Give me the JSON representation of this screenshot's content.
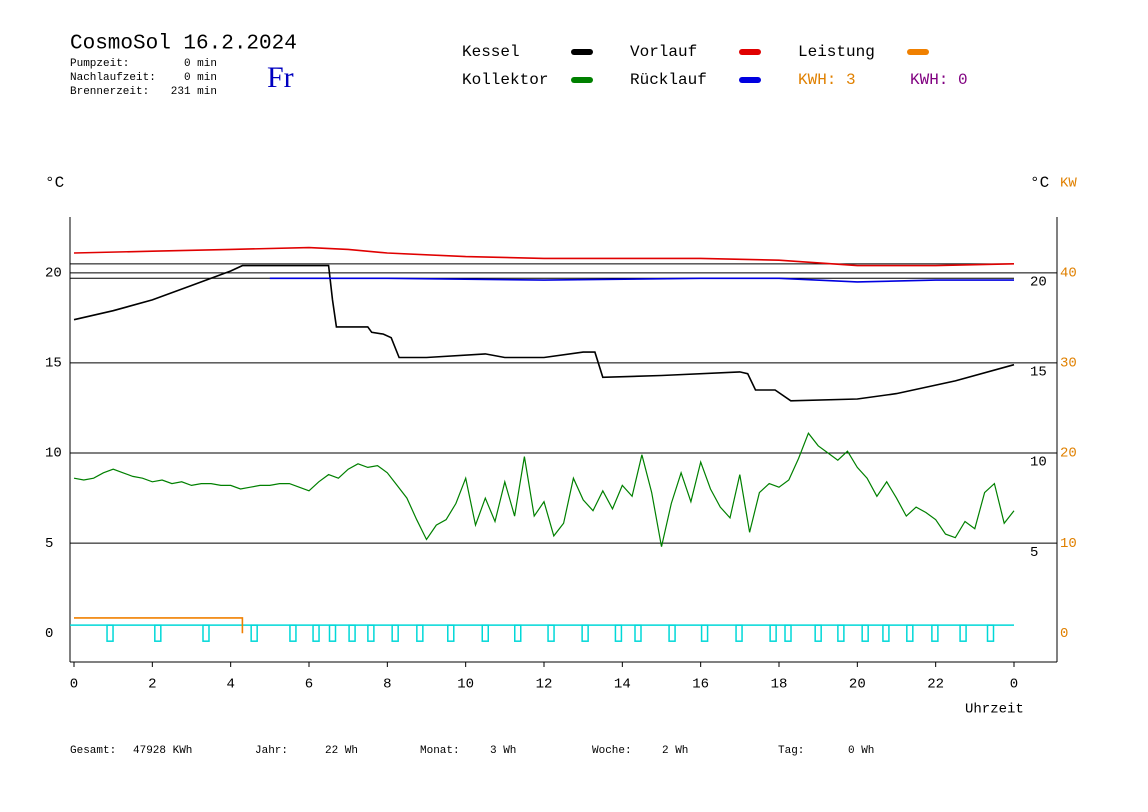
{
  "chart_data": {
    "type": "line",
    "title": "CosmoSol 16.2.2024",
    "info": [
      {
        "label": "Pumpzeit:",
        "value": "0 min"
      },
      {
        "label": "Nachlaufzeit:",
        "value": "0 min"
      },
      {
        "label": "Brennerzeit:",
        "value": "231 min"
      }
    ],
    "weekday": "Fr",
    "ylabel": "°C",
    "y2label": [
      "°C",
      "KW"
    ],
    "xlabel": "Uhrzeit",
    "xlim": [
      0,
      24
    ],
    "xticks": [
      0,
      2,
      4,
      6,
      8,
      10,
      12,
      14,
      16,
      18,
      20,
      22,
      {
        "value": 24,
        "label": "0"
      }
    ],
    "ylim": [
      -1.6,
      23.1
    ],
    "yticks": [
      0,
      5,
      10,
      15,
      20
    ],
    "y2lim": [
      -3.2,
      46.2
    ],
    "y2ticks": [
      0,
      10,
      20,
      30,
      40
    ],
    "grid": true,
    "hlines": [
      20.5,
      19.7
    ],
    "series": [
      {
        "name": "Kessel",
        "color": "#000000",
        "x": [
          0,
          1,
          2,
          3,
          4,
          4.3,
          6.5,
          6.6,
          6.7,
          7.5,
          7.6,
          7.9,
          8.1,
          8.3,
          9,
          10.5,
          11,
          12,
          13,
          13.3,
          13.5,
          15,
          17,
          17.2,
          17.4,
          17.9,
          18.3,
          20,
          21,
          22.5,
          24
        ],
        "values": [
          17.4,
          17.9,
          18.5,
          19.3,
          20.1,
          20.4,
          20.4,
          18.5,
          17.0,
          17.0,
          16.7,
          16.6,
          16.4,
          15.3,
          15.3,
          15.5,
          15.3,
          15.3,
          15.6,
          15.6,
          14.2,
          14.3,
          14.5,
          14.4,
          13.5,
          13.5,
          12.9,
          13.0,
          13.3,
          14.0,
          14.9
        ]
      },
      {
        "name": "Kollektor",
        "color": "#008000",
        "x": [
          0,
          0.25,
          0.5,
          0.75,
          1,
          1.25,
          1.5,
          1.75,
          2,
          2.25,
          2.5,
          2.75,
          3,
          3.25,
          3.5,
          3.75,
          4,
          4.25,
          4.5,
          4.75,
          5,
          5.25,
          5.5,
          5.75,
          6,
          6.25,
          6.5,
          6.75,
          7,
          7.25,
          7.5,
          7.75,
          8,
          8.25,
          8.5,
          8.75,
          9,
          9.25,
          9.5,
          9.75,
          10,
          10.25,
          10.5,
          10.75,
          11,
          11.25,
          11.5,
          11.75,
          12,
          12.25,
          12.5,
          12.75,
          13,
          13.25,
          13.5,
          13.75,
          14,
          14.25,
          14.5,
          14.75,
          15,
          15.25,
          15.5,
          15.75,
          16,
          16.25,
          16.5,
          16.75,
          17,
          17.25,
          17.5,
          17.75,
          18,
          18.25,
          18.5,
          18.75,
          19,
          19.25,
          19.5,
          19.75,
          20,
          20.25,
          20.5,
          20.75,
          21,
          21.25,
          21.5,
          21.75,
          22,
          22.25,
          22.5,
          22.75,
          23,
          23.25,
          23.5,
          23.75,
          24
        ],
        "values": [
          8.6,
          8.5,
          8.6,
          8.9,
          9.1,
          8.9,
          8.7,
          8.6,
          8.4,
          8.5,
          8.3,
          8.4,
          8.2,
          8.3,
          8.3,
          8.2,
          8.2,
          8.0,
          8.1,
          8.2,
          8.2,
          8.3,
          8.3,
          8.1,
          7.9,
          8.4,
          8.8,
          8.6,
          9.1,
          9.4,
          9.2,
          9.3,
          8.9,
          8.2,
          7.5,
          6.3,
          5.2,
          6.0,
          6.3,
          7.2,
          8.6,
          6.0,
          7.5,
          6.2,
          8.4,
          6.5,
          9.8,
          6.5,
          7.3,
          5.4,
          6.1,
          8.6,
          7.4,
          6.8,
          7.9,
          6.9,
          8.2,
          7.6,
          9.9,
          7.8,
          4.8,
          7.2,
          8.9,
          7.3,
          9.5,
          8.0,
          7.0,
          6.4,
          8.8,
          5.6,
          7.8,
          8.3,
          8.1,
          8.5,
          9.7,
          11.1,
          10.4,
          10.0,
          9.6,
          10.1,
          9.2,
          8.6,
          7.6,
          8.4,
          7.5,
          6.5,
          7.0,
          6.7,
          6.3,
          5.5,
          5.3,
          6.2,
          5.8,
          7.8,
          8.3,
          6.1,
          6.8
        ]
      },
      {
        "name": "Vorlauf",
        "color": "#e00000",
        "x": [
          0,
          2,
          4,
          6,
          7,
          8,
          10,
          12,
          14,
          16,
          18,
          20,
          22,
          24
        ],
        "values": [
          21.1,
          21.2,
          21.3,
          21.4,
          21.3,
          21.1,
          20.9,
          20.8,
          20.8,
          20.8,
          20.7,
          20.4,
          20.4,
          20.5
        ]
      },
      {
        "name": "Rücklauf",
        "color": "#0000e0",
        "x": [
          5,
          8,
          12,
          16,
          18,
          20,
          22,
          24
        ],
        "values": [
          19.7,
          19.7,
          19.6,
          19.7,
          19.7,
          19.5,
          19.6,
          19.6
        ]
      },
      {
        "name": "Leistung",
        "color": "#f08000",
        "axis": "y2",
        "x": [
          0,
          4.3,
          4.3
        ],
        "values": [
          1.7,
          1.7,
          0
        ]
      }
    ],
    "kwh": [
      {
        "label": "KWH:",
        "value": 3,
        "color": "#e08000"
      },
      {
        "label": "KWH:",
        "value": 0,
        "color": "#800080"
      }
    ],
    "pulse_color": "#00d8d8",
    "pulses": [
      0.92,
      2.14,
      3.37,
      4.6,
      5.59,
      6.18,
      6.6,
      7.1,
      7.58,
      8.2,
      8.83,
      9.62,
      10.5,
      11.33,
      12.18,
      13.05,
      13.9,
      14.4,
      15.27,
      16.1,
      16.98,
      17.85,
      18.23,
      19.0,
      19.58,
      20.2,
      20.73,
      21.34,
      21.98,
      22.7,
      23.4
    ],
    "footer": [
      {
        "label": "Gesamt:",
        "value": "47928 KWh"
      },
      {
        "label": "Jahr:",
        "value": "22 Wh"
      },
      {
        "label": "Monat:",
        "value": "3 Wh"
      },
      {
        "label": "Woche:",
        "value": "2 Wh"
      },
      {
        "label": "Tag:",
        "value": "0 Wh"
      }
    ]
  }
}
